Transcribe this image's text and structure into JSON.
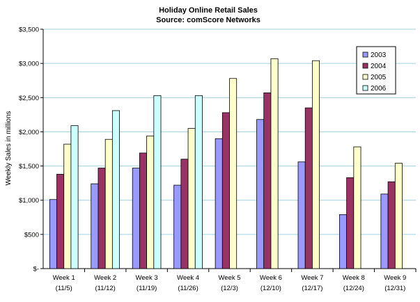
{
  "chart_data": {
    "type": "bar",
    "title": "Holiday Online Retail Sales",
    "subtitle": "Source: comScore Networks",
    "ylabel": "Weekly Sales in millions",
    "xlabel": "",
    "ylim": [
      0,
      3500
    ],
    "ytick_values": [
      0,
      500,
      1000,
      1500,
      2000,
      2500,
      3000,
      3500
    ],
    "ytick_labels": [
      "$-",
      "$500",
      "$1,000",
      "$1,500",
      "$2,000",
      "$2,500",
      "$3,000",
      "$3,500"
    ],
    "categories": [
      [
        "Week 1",
        "(11/5)"
      ],
      [
        "Week 2",
        "(11/12)"
      ],
      [
        "Week 3",
        "(11/19)"
      ],
      [
        "Week 4",
        "(11/26)"
      ],
      [
        "Week 5",
        "(12/3)"
      ],
      [
        "Week 6",
        "(12/10)"
      ],
      [
        "Week 7",
        "(12/17)"
      ],
      [
        "Week 8",
        "(12/24)"
      ],
      [
        "Week 9",
        "(12/31)"
      ]
    ],
    "series": [
      {
        "name": "2003",
        "color": "#9999ff",
        "values": [
          1010,
          1240,
          1470,
          1220,
          1900,
          2180,
          1560,
          790,
          1090
        ]
      },
      {
        "name": "2004",
        "color": "#993366",
        "values": [
          1380,
          1470,
          1690,
          1600,
          2280,
          2570,
          2350,
          1330,
          1270
        ]
      },
      {
        "name": "2005",
        "color": "#ffffcc",
        "values": [
          1820,
          1890,
          1940,
          2050,
          2780,
          3070,
          3040,
          1780,
          1540
        ]
      },
      {
        "name": "2006",
        "color": "#ccffff",
        "values": [
          2090,
          2310,
          2530,
          2530,
          null,
          null,
          null,
          null,
          null
        ]
      }
    ],
    "grid": true,
    "legend_position": "top-right"
  }
}
